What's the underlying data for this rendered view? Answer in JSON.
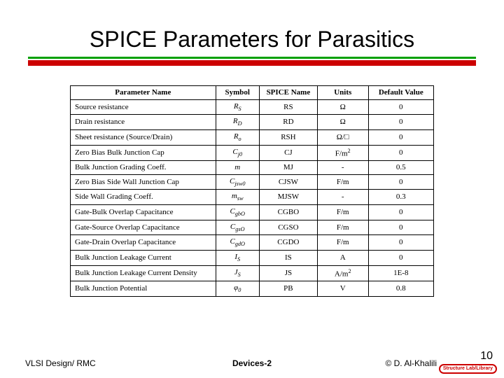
{
  "title": "SPICE Parameters for Parasitics",
  "colors": {
    "rule_green": "#00a000",
    "rule_red": "#cc0000",
    "border": "#000000",
    "text": "#000000",
    "background": "#ffffff"
  },
  "table": {
    "headers": [
      "Parameter Name",
      "Symbol",
      "SPICE Name",
      "Units",
      "Default Value"
    ],
    "col_widths_pct": [
      40,
      12,
      16,
      14,
      18
    ],
    "rows": [
      {
        "name": "Source resistance",
        "symbol_html": "R<sub>S</sub>",
        "spice": "RS",
        "units_html": "Ω",
        "default": "0"
      },
      {
        "name": "Drain resistance",
        "symbol_html": "R<sub>D</sub>",
        "spice": "RD",
        "units_html": "Ω",
        "default": "0"
      },
      {
        "name": "Sheet resistance (Source/Drain)",
        "symbol_html": "R<sub>o</sub>",
        "spice": "RSH",
        "units_html": "Ω/□",
        "default": "0"
      },
      {
        "name": "Zero Bias Bulk Junction Cap",
        "symbol_html": "C<sub>j0</sub>",
        "spice": "CJ",
        "units_html": "F/m<sup>2</sup>",
        "default": "0"
      },
      {
        "name": "Bulk Junction Grading Coeff.",
        "symbol_html": "m",
        "spice": "MJ",
        "units_html": "-",
        "default": "0.5"
      },
      {
        "name": "Zero Bias Side Wall Junction Cap",
        "symbol_html": "C<sub>jsw0</sub>",
        "spice": "CJSW",
        "units_html": "F/m",
        "default": "0"
      },
      {
        "name": "Side Wall Grading Coeff.",
        "symbol_html": "m<sub>sw</sub>",
        "spice": "MJSW",
        "units_html": "-",
        "default": "0.3"
      },
      {
        "name": "Gate-Bulk Overlap Capacitance",
        "symbol_html": "C<sub>gbO</sub>",
        "spice": "CGBO",
        "units_html": "F/m",
        "default": "0"
      },
      {
        "name": "Gate-Source Overlap Capacitance",
        "symbol_html": "C<sub>gsO</sub>",
        "spice": "CGSO",
        "units_html": "F/m",
        "default": "0"
      },
      {
        "name": "Gate-Drain Overlap Capacitance",
        "symbol_html": "C<sub>gdO</sub>",
        "spice": "CGDO",
        "units_html": "F/m",
        "default": "0"
      },
      {
        "name": "Bulk Junction Leakage Current",
        "symbol_html": "I<sub>S</sub>",
        "spice": "IS",
        "units_html": "A",
        "default": "0"
      },
      {
        "name": "Bulk Junction Leakage Current Density",
        "symbol_html": "J<sub>S</sub>",
        "spice": "JS",
        "units_html": "A/m<sup>2</sup>",
        "default": "1E-8"
      },
      {
        "name": "Bulk Junction Potential",
        "symbol_html": "φ<sub>0</sub>",
        "spice": "PB",
        "units_html": "V",
        "default": "0.8"
      }
    ]
  },
  "footer": {
    "left": "VLSI Design/ RMC",
    "mid": "Devices-2",
    "right": "©  D. Al-Khalili",
    "page": "10",
    "badge": "Structure Lab/Library"
  }
}
